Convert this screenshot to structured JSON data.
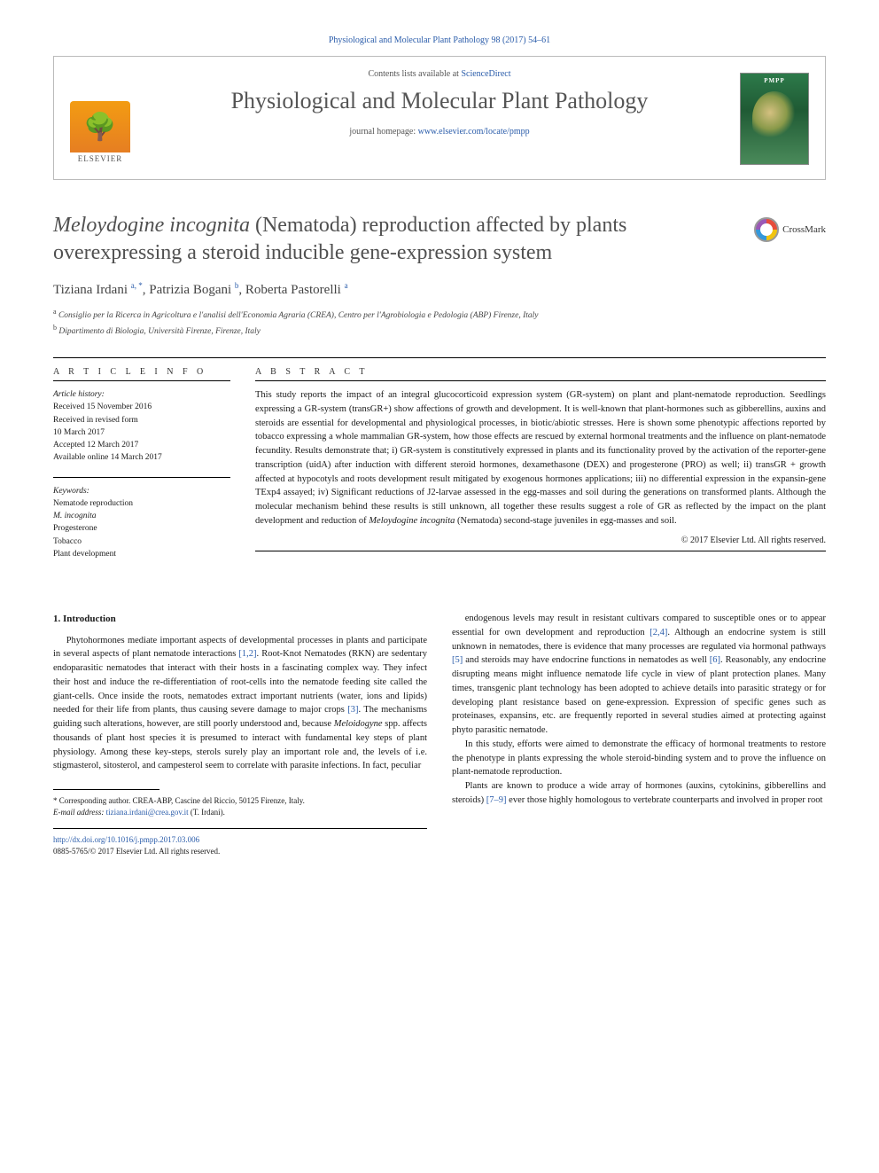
{
  "header": {
    "citation": "Physiological and Molecular Plant Pathology 98 (2017) 54–61"
  },
  "banner": {
    "contents_prefix": "Contents lists available at ",
    "contents_link": "ScienceDirect",
    "journal_name": "Physiological and Molecular Plant Pathology",
    "home_prefix": "journal homepage: ",
    "home_url": "www.elsevier.com/locate/pmpp",
    "publisher": "ELSEVIER",
    "cover_label": "PMPP"
  },
  "article": {
    "title_italic": "Meloydogine incognita",
    "title_rest": " (Nematoda) reproduction affected by plants overexpressing a steroid inducible gene-expression system",
    "crossmark": "CrossMark",
    "authors": [
      {
        "name": "Tiziana Irdani",
        "marks": "a, *"
      },
      {
        "name": "Patrizia Bogani",
        "marks": "b"
      },
      {
        "name": "Roberta Pastorelli",
        "marks": "a"
      }
    ],
    "affiliations": [
      {
        "mark": "a",
        "text": "Consiglio per la Ricerca in Agricoltura e l'analisi dell'Economia Agraria (CREA), Centro per l'Agrobiologia e Pedologia (ABP) Firenze, Italy"
      },
      {
        "mark": "b",
        "text": "Dipartimento di Biologia, Università Firenze, Firenze, Italy"
      }
    ]
  },
  "info": {
    "heading": "A R T I C L E   I N F O",
    "history_label": "Article history:",
    "history": [
      "Received 15 November 2016",
      "Received in revised form",
      "10 March 2017",
      "Accepted 12 March 2017",
      "Available online 14 March 2017"
    ],
    "keywords_label": "Keywords:",
    "keywords": [
      "Nematode reproduction",
      "M. incognita",
      "Progesterone",
      "Tobacco",
      "Plant development"
    ]
  },
  "abstract": {
    "heading": "A B S T R A C T",
    "text": "This study reports the impact of an integral glucocorticoid expression system (GR-system) on plant and plant-nematode reproduction. Seedlings expressing a GR-system (transGR+) show affections of growth and development. It is well-known that plant-hormones such as gibberellins, auxins and steroids are essential for developmental and physiological processes, in biotic/abiotic stresses. Here is shown some phenotypic affections reported by tobacco expressing a whole mammalian GR-system, how those effects are rescued by external hormonal treatments and the influence on plant-nematode fecundity. Results demonstrate that; i) GR-system is constitutively expressed in plants and its functionality proved by the activation of the reporter-gene transcription (uidA) after induction with different steroid hormones, dexamethasone (DEX) and progesterone (PRO) as well; ii) transGR + growth affected at hypocotyls and roots development result mitigated by exogenous hormones applications; iii) no differential expression in the expansin-gene TExp4 assayed; iv) Significant reductions of J2-larvae assessed in the egg-masses and soil during the generations on transformed plants. Although the molecular mechanism behind these results is still unknown, all together these results suggest a role of GR as reflected by the impact on the plant development and reduction of ",
    "text_italic": "Meloydogine incognita",
    "text_tail": " (Nematoda) second-stage juveniles in egg-masses and soil.",
    "copyright": "© 2017 Elsevier Ltd. All rights reserved."
  },
  "body": {
    "section_title": "1. Introduction",
    "col1_p1": "Phytohormones mediate important aspects of developmental processes in plants and participate in several aspects of plant nematode interactions [1,2]. Root-Knot Nematodes (RKN) are sedentary endoparasitic nematodes that interact with their hosts in a fascinating complex way. They infect their host and induce the re-differentiation of root-cells into the nematode feeding site called the giant-cells. Once inside the roots, nematodes extract important nutrients (water, ions and lipids) needed for their life from plants, thus causing severe damage to major crops [3]. The mechanisms guiding such alterations, however, are still poorly understood and, because Meloidogyne spp. affects thousands of plant host species it is presumed to interact with fundamental key steps of plant physiology. Among these key-steps, sterols surely play an important role and, the levels of i.e. stigmasterol, sitosterol, and campesterol seem to correlate with parasite infections. In fact, peculiar",
    "col2_p1": "endogenous levels may result in resistant cultivars compared to susceptible ones or to appear essential for own development and reproduction [2,4]. Although an endocrine system is still unknown in nematodes, there is evidence that many processes are regulated via hormonal pathways [5] and steroids may have endocrine functions in nematodes as well [6]. Reasonably, any endocrine disrupting means might influence nematode life cycle in view of plant protection planes. Many times, transgenic plant technology has been adopted to achieve details into parasitic strategy or for developing plant resistance based on gene-expression. Expression of specific genes such as proteinases, expansins, etc. are frequently reported in several studies aimed at protecting against phyto parasitic nematode.",
    "col2_p2": "In this study, efforts were aimed to demonstrate the efficacy of hormonal treatments to restore the phenotype in plants expressing the whole steroid-binding system and to prove the influence on plant-nematode reproduction.",
    "col2_p3": "Plants are known to produce a wide array of hormones (auxins, cytokinins, gibberellins and steroids) [7–9] ever those highly homologous to vertebrate counterparts and involved in proper root"
  },
  "footnote": {
    "corr": "* Corresponding author. CREA-ABP, Cascine del Riccio, 50125 Firenze, Italy.",
    "email_label": "E-mail address:",
    "email": "tiziana.irdani@crea.gov.it",
    "email_tail": " (T. Irdani)."
  },
  "footer": {
    "doi": "http://dx.doi.org/10.1016/j.pmpp.2017.03.006",
    "issn": "0885-5765/© 2017 Elsevier Ltd. All rights reserved."
  },
  "colors": {
    "link": "#2a5caa",
    "text": "#1a1a1a",
    "heading": "#505050",
    "rule": "#000000"
  }
}
